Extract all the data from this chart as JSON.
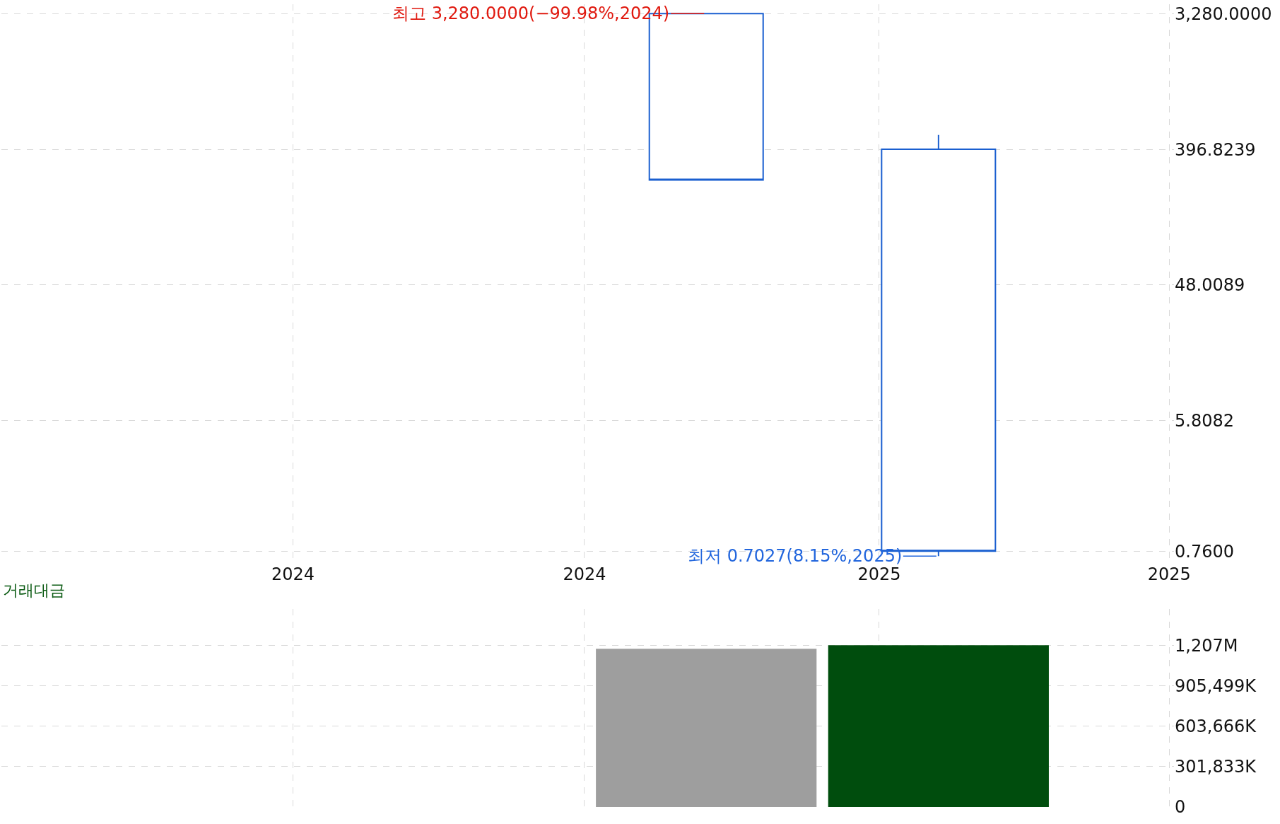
{
  "chart_data": [
    {
      "type": "candlestick",
      "x": [
        "2024-09-15",
        "2025-02-07"
      ],
      "ohlc": [
        [
          3280,
          3280,
          246,
          246
        ],
        [
          396.8239,
          497,
          0.7027,
          0.76
        ]
      ],
      "color": "#1a5fd0",
      "log": true,
      "xlim": [
        "2023-07-03",
        "2025-07-04"
      ],
      "xticks": [
        {
          "value": "2024-01-01",
          "label": "2024"
        },
        {
          "value": "2024-07-01",
          "label": "2024"
        },
        {
          "value": "2025-01-01",
          "label": "2025"
        },
        {
          "value": "2025-07-01",
          "label": "2025"
        }
      ],
      "ylim": [
        0.64,
        3800
      ],
      "yticks": [
        {
          "value": 0.76,
          "label": "0.7600"
        },
        {
          "value": 5.8082,
          "label": "5.8082"
        },
        {
          "value": 48.0089,
          "label": "48.0089"
        },
        {
          "value": 396.8239,
          "label": "396.8239"
        },
        {
          "value": 3280,
          "label": "3,280.0000"
        }
      ],
      "grid": true,
      "annotations": [
        {
          "text": "최고 3,280.0000(−99.98%,2024)",
          "x": "2024-09-15",
          "y": 3280
        },
        {
          "text": "최저 0.7027(8.15%,2025)",
          "x": "2025-02-07",
          "y": 0.7027
        }
      ]
    },
    {
      "type": "bar",
      "title": "거래대금",
      "x": [
        "2024-09-15",
        "2025-02-07"
      ],
      "values": [
        1181000000,
        1207000000
      ],
      "colors": [
        "#9e9e9e",
        "#004d0d"
      ],
      "xlim": [
        "2023-07-03",
        "2025-07-04"
      ],
      "xticks": [
        {
          "value": "2024-01-01",
          "label": null
        },
        {
          "value": "2024-07-01",
          "label": null
        },
        {
          "value": "2025-01-01",
          "label": null
        },
        {
          "value": "2025-07-01",
          "label": null
        }
      ],
      "ylim": [
        0,
        1480000000
      ],
      "yticks": [
        0,
        {
          "value": 301833000,
          "label": "301,833K"
        },
        {
          "value": 603666000,
          "label": "603,666K"
        },
        {
          "value": 905499000,
          "label": "905,499K"
        },
        {
          "value": 1207332000,
          "label": "1,207M"
        }
      ],
      "grid": true,
      "tick_labels": "y"
    }
  ]
}
